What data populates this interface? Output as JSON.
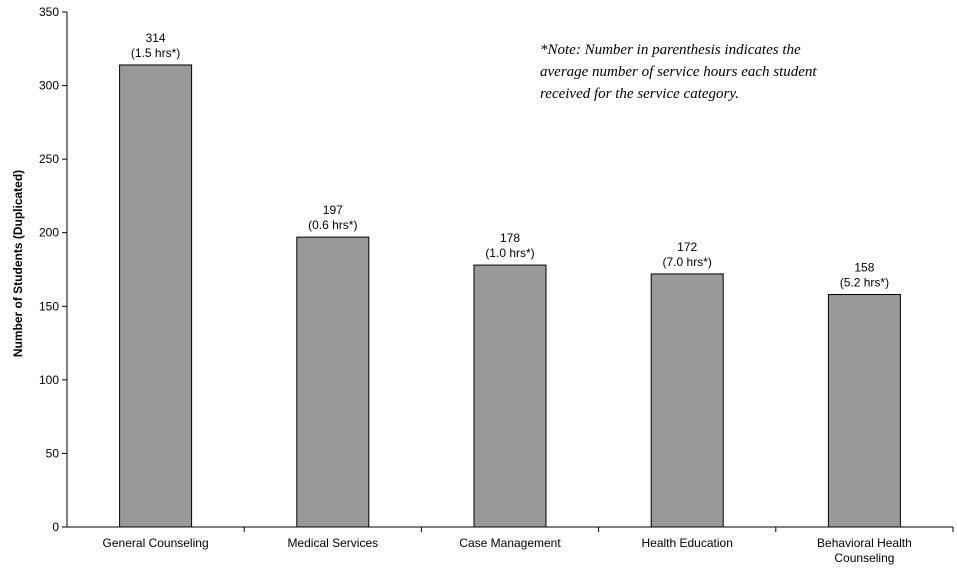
{
  "chart_data": {
    "type": "bar",
    "categories": [
      [
        "General Counseling"
      ],
      [
        "Medical Services"
      ],
      [
        "Case Management"
      ],
      [
        "Health Education"
      ],
      [
        "Behavioral Health",
        "Counseling"
      ]
    ],
    "values": [
      314,
      197,
      178,
      172,
      158
    ],
    "data_labels": [
      [
        "314",
        "(1.5 hrs*)"
      ],
      [
        "197",
        "(0.6 hrs*)"
      ],
      [
        "178",
        "(1.0 hrs*)"
      ],
      [
        "172",
        "(7.0 hrs*)"
      ],
      [
        "158",
        "(5.2 hrs*)"
      ]
    ],
    "ylabel": "Number of Students (Duplicated)",
    "xlabel": "",
    "ylim": [
      0,
      350
    ],
    "yticks": [
      0,
      50,
      100,
      150,
      200,
      250,
      300,
      350
    ],
    "bar_color": "#999999",
    "grid": false,
    "annotation": [
      "*Note: Number in parenthesis indicates the",
      "average number of service hours each student",
      "received for the service category."
    ]
  }
}
